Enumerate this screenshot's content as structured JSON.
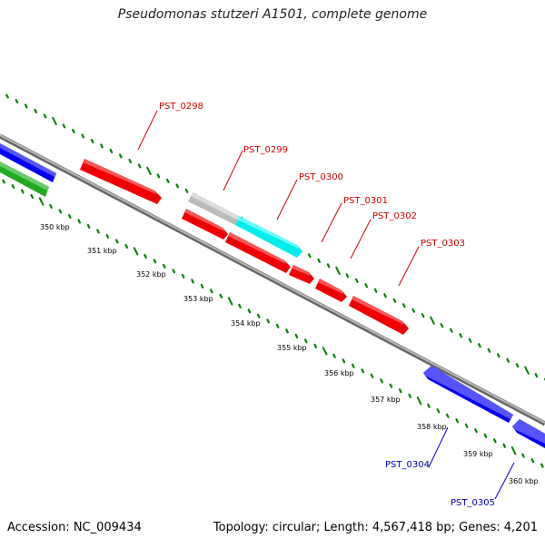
{
  "title": "Pseudomonas stutzeri A1501, complete genome",
  "accession": "Accession: NC_009434",
  "summary": "Topology: circular; Length: 4,567,418 bp; Genes: 4,201",
  "colors": {
    "backbone": "#8a8a8a",
    "tick_dotted": "#008000",
    "tick_label": "#000000",
    "forward_label": "#cc0000",
    "reverse_label": "#0000bb",
    "gene_red": "#ee0000",
    "gene_blue": "#0000ee",
    "gene_green": "#22aa22",
    "gene_gray": "#bbbbbb",
    "gene_cyan": "#00eeee"
  },
  "scale_labels": [
    "350 kbp",
    "351 kbp",
    "352 kbp",
    "353 kbp",
    "354 kbp",
    "355 kbp",
    "356 kbp",
    "357 kbp",
    "358 kbp",
    "359 kbp",
    "360 kbp"
  ],
  "gene_labels": {
    "forward": [
      "PST_0298",
      "PST_0299",
      "PST_0300",
      "PST_0301",
      "PST_0302",
      "PST_0303"
    ],
    "reverse": [
      "PST_0304",
      "PST_0305"
    ]
  }
}
